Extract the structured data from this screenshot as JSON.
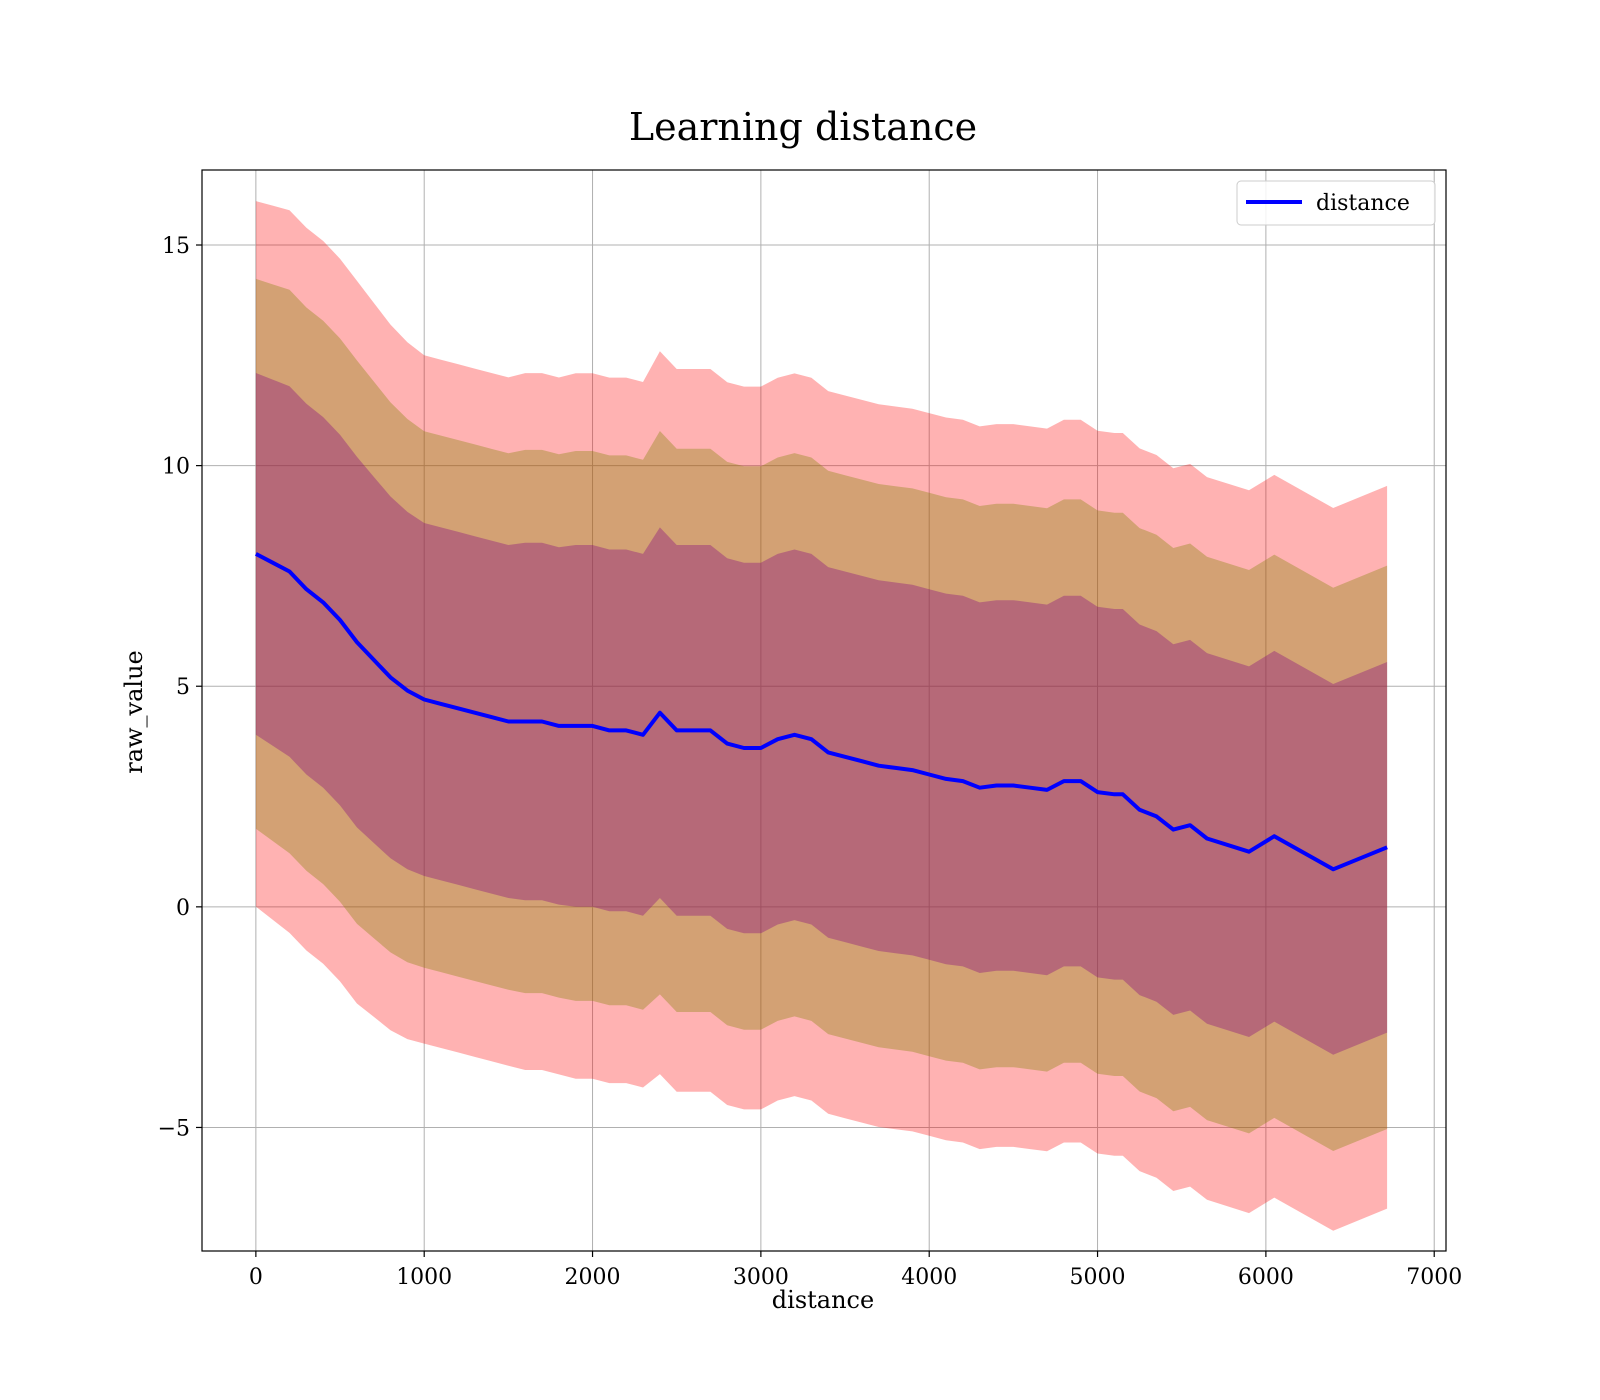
{
  "chart_data": {
    "type": "line",
    "title": "Learning distance",
    "xlabel": "distance",
    "ylabel": "raw_value",
    "xlim": [
      -320,
      7070
    ],
    "ylim": [
      -7.8,
      16.7
    ],
    "xticks": [
      0,
      1000,
      2000,
      3000,
      4000,
      5000,
      6000,
      7000
    ],
    "xtick_labels": [
      "0",
      "1000",
      "2000",
      "3000",
      "4000",
      "5000",
      "6000",
      "7000"
    ],
    "yticks": [
      -5,
      0,
      5,
      10,
      15
    ],
    "ytick_labels": [
      "−5",
      "0",
      "5",
      "10",
      "15"
    ],
    "grid": true,
    "legend_position": "top-right",
    "series": [
      {
        "name": "distance",
        "color": "#0000ff",
        "x": [
          0,
          100,
          200,
          300,
          400,
          500,
          600,
          700,
          800,
          900,
          1000,
          1100,
          1200,
          1300,
          1400,
          1500,
          1600,
          1700,
          1800,
          1900,
          2000,
          2100,
          2200,
          2300,
          2400,
          2500,
          2600,
          2700,
          2800,
          2900,
          3000,
          3100,
          3200,
          3300,
          3400,
          3500,
          3600,
          3700,
          3800,
          3900,
          4000,
          4100,
          4200,
          4300,
          4400,
          4500,
          4600,
          4700,
          4800,
          4900,
          5000,
          5100,
          5150,
          5250,
          5350,
          5450,
          5550,
          5650,
          5900,
          6050,
          6400,
          6720
        ],
        "y": [
          8.0,
          7.8,
          7.6,
          7.2,
          6.9,
          6.5,
          6.0,
          5.6,
          5.2,
          4.9,
          4.7,
          4.6,
          4.5,
          4.4,
          4.3,
          4.2,
          4.2,
          4.2,
          4.1,
          4.1,
          4.1,
          4.0,
          4.0,
          3.9,
          4.4,
          4.0,
          4.0,
          4.0,
          3.7,
          3.6,
          3.6,
          3.8,
          3.9,
          3.8,
          3.5,
          3.4,
          3.3,
          3.2,
          3.15,
          3.1,
          3.0,
          2.9,
          2.85,
          2.7,
          2.75,
          2.75,
          2.7,
          2.65,
          2.85,
          2.85,
          2.6,
          2.55,
          2.55,
          2.2,
          2.05,
          1.75,
          1.85,
          1.55,
          1.25,
          1.6,
          0.85,
          1.35
        ],
        "bands": [
          {
            "k": 1,
            "color": "#800080",
            "opacity": 0.35
          },
          {
            "k": 2,
            "color": "#808000",
            "opacity": 0.35
          },
          {
            "k": 3,
            "color": "#ff0000",
            "opacity": 0.3
          }
        ],
        "band_halfwidth": [
          4.1,
          4.15,
          4.2,
          4.2,
          4.2,
          4.2,
          4.2,
          4.15,
          4.1,
          4.05,
          4.0,
          4.0,
          4.0,
          4.0,
          4.0,
          4.0,
          4.05,
          4.05,
          4.05,
          4.1,
          4.1,
          4.1,
          4.1,
          4.1,
          4.2,
          4.2,
          4.2,
          4.2,
          4.2,
          4.2,
          4.2,
          4.2,
          4.2,
          4.2,
          4.2,
          4.2,
          4.2,
          4.2,
          4.2,
          4.2,
          4.2,
          4.2,
          4.2,
          4.2,
          4.2,
          4.2,
          4.2,
          4.2,
          4.2,
          4.2,
          4.2,
          4.2,
          4.2,
          4.2,
          4.2,
          4.2,
          4.2,
          4.2,
          4.2,
          4.2,
          4.2,
          4.2
        ]
      }
    ]
  }
}
